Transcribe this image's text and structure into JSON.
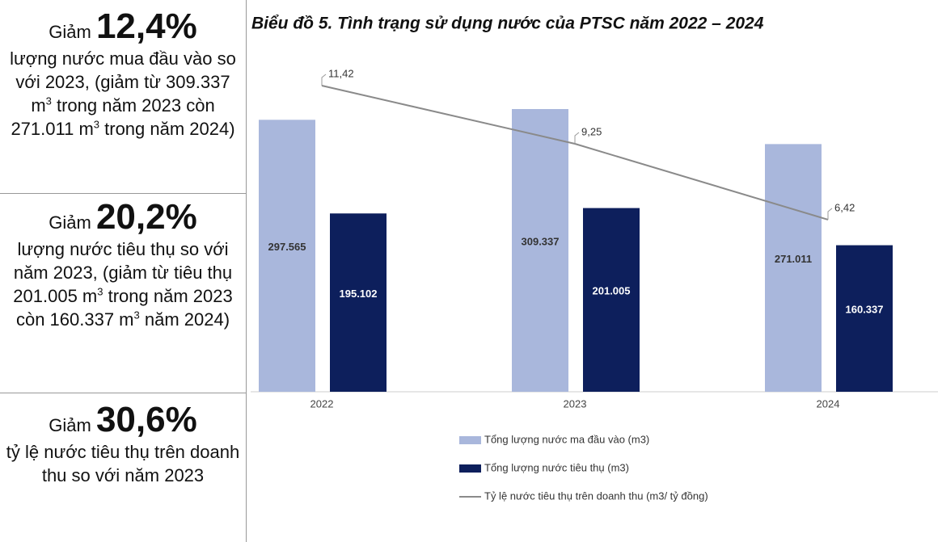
{
  "panels": [
    {
      "head": "Giảm",
      "big": "12,4%",
      "body": [
        "lượng nước mua đầu vào so với 2023, (giảm từ 309.337 m",
        "3",
        " trong năm 2023 còn 271.011 m",
        "3",
        " trong năm 2024)"
      ]
    },
    {
      "head": "Giảm",
      "big": "20,2%",
      "body": [
        "lượng nước tiêu thụ so với năm 2023, (giảm từ tiêu thụ 201.005 m",
        "3",
        " trong năm 2023 còn 160.337 m",
        "3",
        " năm 2024)"
      ]
    },
    {
      "head": "Giảm",
      "big": "30,6%",
      "body": [
        "tỷ lệ nước tiêu thụ trên doanh thu so với năm 2023"
      ]
    }
  ],
  "chart_data": {
    "type": "bar",
    "title": "Biểu đồ 5. Tình trạng sử dụng nước của PTSC năm 2022 – 2024",
    "categories": [
      "2022",
      "2023",
      "2024"
    ],
    "series": [
      {
        "name": "Tổng lượng nước ma đầu vào (m3)",
        "type": "bar",
        "color": "#a9b7dc",
        "values": [
          297565,
          309337,
          271011
        ],
        "value_labels": [
          "297.565",
          "309.337",
          "271.011"
        ]
      },
      {
        "name": "Tổng lượng nước tiêu thụ (m3)",
        "type": "bar",
        "color": "#0d1f5c",
        "values": [
          195102,
          201005,
          160337
        ],
        "value_labels": [
          "195.102",
          "201.005",
          "160.337"
        ]
      },
      {
        "name": "Tỷ lệ nước tiêu thụ trên doanh thu (m3/ tỷ đồng)",
        "type": "line",
        "color": "#8a8a8a",
        "values": [
          11.42,
          9.25,
          6.42
        ],
        "value_labels": [
          "11,42",
          "9,25",
          "6,42"
        ]
      }
    ]
  }
}
